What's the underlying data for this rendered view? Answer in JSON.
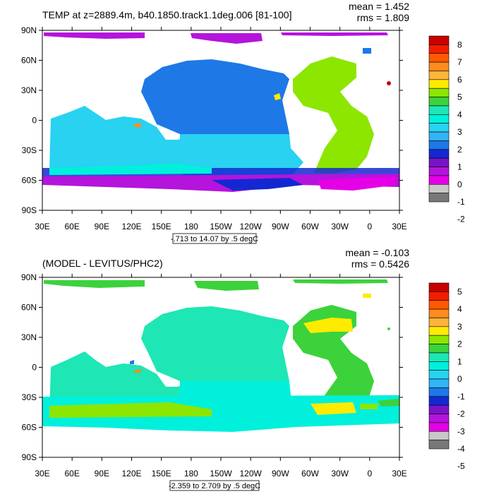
{
  "panels": [
    {
      "title": "TEMP at z=2889.4m, b40.1850.track1.1deg.006 [81-100]",
      "mean_label": "mean = 1.452",
      "rms_label": "rms = 1.809",
      "info_label": "-.713 to 14.07 by .5 degC",
      "lat_labels": [
        "90N",
        "60N",
        "30N",
        "0",
        "30S",
        "60S",
        "90S"
      ],
      "lon_labels": [
        "30E",
        "60E",
        "90E",
        "120E",
        "150E",
        "180",
        "150W",
        "120W",
        "90W",
        "60W",
        "30W",
        "0",
        "30E"
      ],
      "colorbar": {
        "labels": [
          "8",
          "7",
          "6",
          "5",
          "4",
          "3",
          "2",
          "1",
          "0",
          "-1",
          "-2"
        ],
        "colors": [
          "#c80000",
          "#f01e00",
          "#ff5a00",
          "#ff8c1e",
          "#ffb43c",
          "#ffeb00",
          "#8ce600",
          "#3cd23c",
          "#1ee6b4",
          "#00f0dc",
          "#28d2f0",
          "#32b4f5",
          "#1e78e6",
          "#1428d2",
          "#7814c8",
          "#b414dc",
          "#e600e6",
          "#c8c8c8",
          "#787878"
        ]
      }
    },
    {
      "title": "(MODEL - LEVITUS/PHC2)",
      "mean_label": "mean = -0.103",
      "rms_label": "rms = 0.5426",
      "info_label": "-2.359 to 2.709 by .5 degC",
      "lat_labels": [
        "90N",
        "60N",
        "30N",
        "0",
        "30S",
        "60S",
        "90S"
      ],
      "lon_labels": [
        "30E",
        "60E",
        "90E",
        "120E",
        "150E",
        "180",
        "150W",
        "120W",
        "90W",
        "60W",
        "30W",
        "0",
        "30E"
      ],
      "colorbar": {
        "labels": [
          "5",
          "4",
          "3",
          "2",
          "1",
          "0",
          "-1",
          "-2",
          "-3",
          "-4",
          "-5"
        ],
        "colors": [
          "#c80000",
          "#f01e00",
          "#ff5a00",
          "#ff8c1e",
          "#ffb43c",
          "#ffeb00",
          "#8ce600",
          "#3cd23c",
          "#1ee6b4",
          "#00f0dc",
          "#28d2f0",
          "#32b4f5",
          "#1e78e6",
          "#1428d2",
          "#7814c8",
          "#b414dc",
          "#e600e6",
          "#c8c8c8",
          "#787878"
        ]
      }
    }
  ],
  "colors": {
    "ocean_top_main": "#28d2f0",
    "ocean_top_pacific": "#1e78e6",
    "ocean_top_atlantic": "#8ce600",
    "ocean_top_south": "#1428d2",
    "ocean_top_antarctic": "#b414dc",
    "ocean_bottom_main": "#1ee6b4",
    "ocean_bottom_light": "#00f0dc",
    "ocean_bottom_green": "#8ce600",
    "ocean_bottom_yellow": "#ffeb00"
  }
}
